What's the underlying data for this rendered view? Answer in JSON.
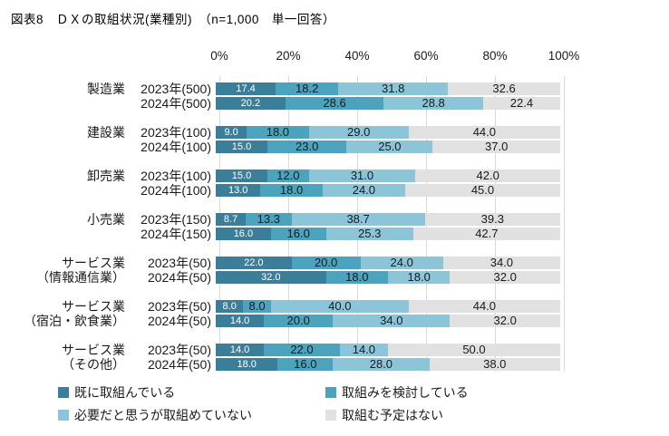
{
  "title": "図表8　ＤＸの取組状況(業種別)　（n=1,000　単一回答）",
  "colors": {
    "segments": [
      "#3A7E99",
      "#4BA3BE",
      "#8CC4D8",
      "#E1E1E1"
    ],
    "grid": "#D9D9D9",
    "value_text": "#1A1A1A",
    "value_text_first": "#FFFFFF"
  },
  "axis": {
    "ticks": [
      "0%",
      "20%",
      "40%",
      "60%",
      "80%",
      "100%"
    ]
  },
  "legend": {
    "items": [
      "既に取組んでいる",
      "取組みを検討している",
      "必要だと思うが取組めていない",
      "取組む予定はない"
    ]
  },
  "chart_data": {
    "type": "bar",
    "orientation": "horizontal",
    "stacked": true,
    "unit": "%",
    "xlim": [
      0,
      100
    ],
    "grid": true,
    "legend_position": "bottom",
    "series_names": [
      "既に取組んでいる",
      "取組みを検討している",
      "必要だと思うが取組めていない",
      "取組む予定はない"
    ],
    "groups": [
      {
        "name": [
          "製造業",
          ""
        ],
        "rows": [
          {
            "label": "2023年(500)",
            "values": [
              17.4,
              18.2,
              31.8,
              32.6
            ]
          },
          {
            "label": "2024年(500)",
            "values": [
              20.2,
              28.6,
              28.8,
              22.4
            ]
          }
        ]
      },
      {
        "name": [
          "建設業",
          ""
        ],
        "rows": [
          {
            "label": "2023年(100)",
            "values": [
              9.0,
              18.0,
              29.0,
              44.0
            ]
          },
          {
            "label": "2024年(100)",
            "values": [
              15.0,
              23.0,
              25.0,
              37.0
            ]
          }
        ]
      },
      {
        "name": [
          "卸売業",
          ""
        ],
        "rows": [
          {
            "label": "2023年(100)",
            "values": [
              15.0,
              12.0,
              31.0,
              42.0
            ]
          },
          {
            "label": "2024年(100)",
            "values": [
              13.0,
              18.0,
              24.0,
              45.0
            ]
          }
        ]
      },
      {
        "name": [
          "小売業",
          ""
        ],
        "rows": [
          {
            "label": "2023年(150)",
            "values": [
              8.7,
              13.3,
              38.7,
              39.3
            ]
          },
          {
            "label": "2024年(150)",
            "values": [
              16.0,
              16.0,
              25.3,
              42.7
            ]
          }
        ]
      },
      {
        "name": [
          "サービス業",
          "（情報通信業）"
        ],
        "rows": [
          {
            "label": "2023年(50)",
            "values": [
              22.0,
              20.0,
              24.0,
              34.0
            ]
          },
          {
            "label": "2024年(50)",
            "values": [
              32.0,
              18.0,
              18.0,
              32.0
            ]
          }
        ]
      },
      {
        "name": [
          "サービス業",
          "（宿泊・飲食業）"
        ],
        "rows": [
          {
            "label": "2023年(50)",
            "values": [
              8.0,
              8.0,
              40.0,
              44.0
            ]
          },
          {
            "label": "2024年(50)",
            "values": [
              14.0,
              20.0,
              34.0,
              32.0
            ]
          }
        ]
      },
      {
        "name": [
          "サービス業",
          "（その他）"
        ],
        "rows": [
          {
            "label": "2023年(50)",
            "values": [
              14.0,
              22.0,
              14.0,
              50.0
            ]
          },
          {
            "label": "2024年(50)",
            "values": [
              18.0,
              16.0,
              28.0,
              38.0
            ]
          }
        ]
      }
    ]
  }
}
